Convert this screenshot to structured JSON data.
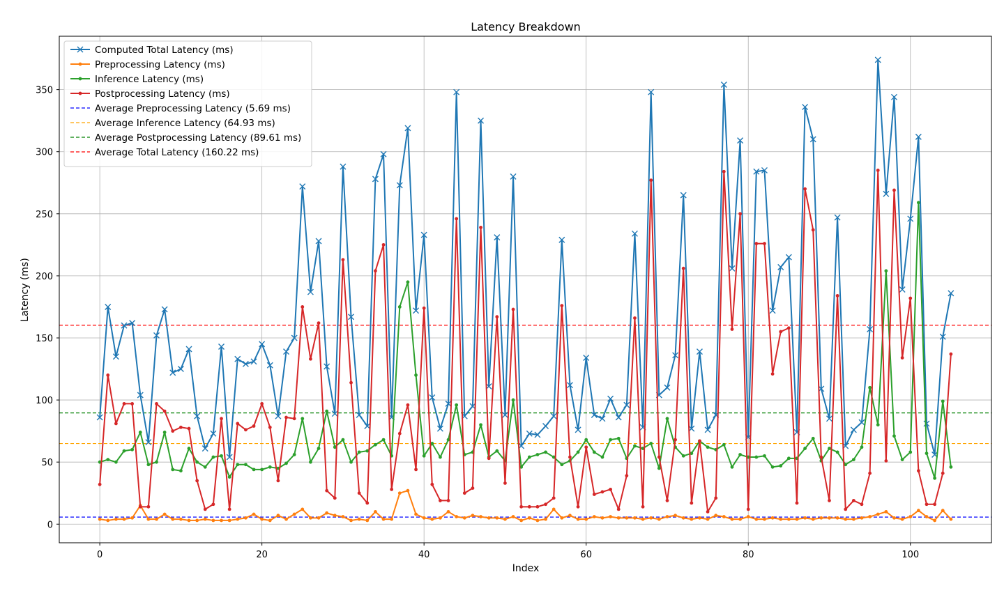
{
  "chart_data": {
    "type": "line",
    "title": "Latency Breakdown",
    "xlabel": "Index",
    "ylabel": "Latency (ms)",
    "xlim": [
      -5,
      110
    ],
    "ylim": [
      -15,
      393
    ],
    "xticks": [
      0,
      20,
      40,
      60,
      80,
      100
    ],
    "yticks": [
      0,
      50,
      100,
      150,
      200,
      250,
      300,
      350
    ],
    "grid": true,
    "legend_position": "top-left",
    "series": [
      {
        "name": "Computed Total Latency (ms)",
        "color": "#1f77b4",
        "marker": "x",
        "values": [
          86,
          175,
          135,
          160,
          162,
          104,
          66,
          152,
          173,
          122,
          125,
          141,
          87,
          61,
          73,
          143,
          54,
          133,
          129,
          131,
          145,
          128,
          87,
          139,
          150,
          272,
          187,
          228,
          127,
          89,
          288,
          167,
          88,
          79,
          278,
          298,
          86,
          273,
          319,
          172,
          233,
          102,
          77,
          97,
          348,
          87,
          95,
          325,
          111,
          231,
          88,
          280,
          63,
          73,
          72,
          79,
          87,
          229,
          112,
          76,
          134,
          88,
          85,
          101,
          86,
          96,
          234,
          78,
          348,
          104,
          110,
          136,
          265,
          77,
          139,
          76,
          88,
          354,
          206,
          309,
          70,
          284,
          285,
          172,
          207,
          215,
          74,
          336,
          310,
          109,
          85,
          247,
          63,
          76,
          82,
          157,
          374,
          266,
          344,
          189,
          246,
          312,
          81,
          56,
          151,
          186
        ]
      },
      {
        "name": "Preprocessing Latency (ms)",
        "color": "#ff7f0e",
        "marker": "o",
        "values": [
          4,
          3,
          4,
          4,
          5,
          15,
          4,
          4,
          8,
          4,
          4,
          3,
          3,
          4,
          3,
          3,
          3,
          4,
          5,
          8,
          4,
          3,
          7,
          4,
          8,
          12,
          5,
          5,
          9,
          7,
          6,
          3,
          4,
          3,
          10,
          4,
          4,
          25,
          27,
          8,
          5,
          4,
          5,
          10,
          6,
          5,
          7,
          6,
          5,
          5,
          4,
          6,
          3,
          5,
          3,
          4,
          12,
          5,
          7,
          4,
          4,
          6,
          5,
          6,
          5,
          5,
          5,
          4,
          5,
          4,
          6,
          7,
          5,
          4,
          5,
          4,
          7,
          6,
          4,
          4,
          6,
          4,
          4,
          5,
          4,
          4,
          4,
          5,
          4,
          5,
          5,
          5,
          4,
          4,
          5,
          6,
          8,
          10,
          5,
          4,
          6,
          11,
          6,
          3,
          11,
          4
        ]
      },
      {
        "name": "Inference Latency (ms)",
        "color": "#2ca02c",
        "marker": "o",
        "values": [
          50,
          52,
          50,
          59,
          60,
          74,
          48,
          50,
          74,
          44,
          43,
          61,
          50,
          46,
          54,
          55,
          38,
          48,
          48,
          44,
          44,
          46,
          45,
          49,
          56,
          85,
          50,
          61,
          91,
          62,
          68,
          50,
          58,
          59,
          64,
          68,
          55,
          175,
          195,
          120,
          55,
          65,
          54,
          68,
          96,
          56,
          58,
          80,
          54,
          59,
          51,
          100,
          46,
          54,
          56,
          58,
          54,
          48,
          51,
          58,
          68,
          58,
          54,
          68,
          69,
          53,
          63,
          61,
          65,
          45,
          85,
          62,
          55,
          57,
          67,
          62,
          60,
          64,
          46,
          56,
          54,
          54,
          55,
          46,
          47,
          53,
          53,
          61,
          69,
          51,
          61,
          58,
          48,
          52,
          62,
          110,
          80,
          204,
          71,
          52,
          58,
          259,
          57,
          37,
          99,
          46
        ]
      },
      {
        "name": "Postprocessing Latency (ms)",
        "color": "#d62728",
        "marker": "o",
        "values": [
          32,
          120,
          81,
          97,
          97,
          14,
          14,
          97,
          91,
          75,
          78,
          77,
          35,
          12,
          16,
          85,
          12,
          81,
          76,
          79,
          97,
          78,
          35,
          86,
          85,
          175,
          133,
          162,
          27,
          21,
          213,
          114,
          25,
          17,
          204,
          225,
          28,
          73,
          96,
          44,
          174,
          32,
          19,
          19,
          246,
          25,
          29,
          239,
          53,
          167,
          33,
          173,
          14,
          14,
          14,
          16,
          21,
          176,
          54,
          14,
          62,
          24,
          26,
          28,
          12,
          39,
          166,
          14,
          277,
          54,
          19,
          68,
          206,
          17,
          67,
          10,
          21,
          284,
          157,
          250,
          12,
          226,
          226,
          121,
          155,
          158,
          17,
          270,
          237,
          54,
          19,
          184,
          12,
          19,
          16,
          41,
          285,
          51,
          269,
          134,
          182,
          43,
          16,
          16,
          41,
          137
        ]
      }
    ],
    "reference_lines": [
      {
        "label": "Average Preprocessing Latency (5.69 ms)",
        "value": 5.69,
        "color": "#0000ff"
      },
      {
        "label": "Average Inference Latency (64.93 ms)",
        "value": 64.93,
        "color": "#ffa500"
      },
      {
        "label": "Average Postprocessing Latency (89.61 ms)",
        "value": 89.61,
        "color": "#008000"
      },
      {
        "label": "Average Total Latency (160.22 ms)",
        "value": 160.22,
        "color": "#ff0000"
      }
    ]
  }
}
